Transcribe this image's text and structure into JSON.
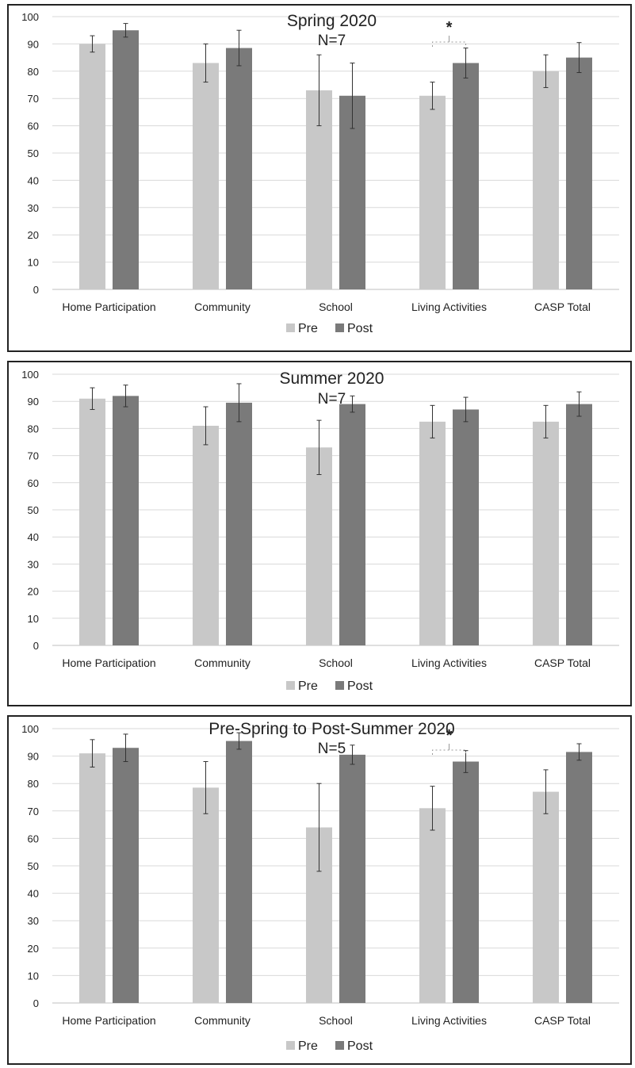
{
  "chart_data": [
    {
      "type": "bar",
      "title": "Spring 2020",
      "subtitle": "N=7",
      "categories": [
        "Home Participation",
        "Community",
        "School",
        "Living Activities",
        "CASP Total"
      ],
      "series": [
        {
          "name": "Pre",
          "values": [
            90,
            83,
            73,
            71,
            80
          ],
          "error": [
            3,
            7,
            13,
            5,
            6
          ]
        },
        {
          "name": "Post",
          "values": [
            95,
            88.5,
            71,
            83,
            85
          ],
          "error": [
            2.5,
            6.5,
            12,
            5.5,
            5.5
          ]
        }
      ],
      "ylim": [
        0,
        100
      ],
      "yticks": [
        0,
        10,
        20,
        30,
        40,
        50,
        60,
        70,
        80,
        90,
        100
      ],
      "grid": true,
      "legend": "bottom-center",
      "significance": [
        {
          "category": "Living Activities",
          "label": "*"
        }
      ]
    },
    {
      "type": "bar",
      "title": "Summer 2020",
      "subtitle": "N=7",
      "categories": [
        "Home Participation",
        "Community",
        "School",
        "Living Activities",
        "CASP Total"
      ],
      "series": [
        {
          "name": "Pre",
          "values": [
            91,
            81,
            73,
            82.5,
            82.5
          ],
          "error": [
            4,
            7,
            10,
            6,
            6
          ]
        },
        {
          "name": "Post",
          "values": [
            92,
            89.5,
            89,
            87,
            89
          ],
          "error": [
            4,
            7,
            3,
            4.5,
            4.5
          ]
        }
      ],
      "ylim": [
        0,
        100
      ],
      "yticks": [
        0,
        10,
        20,
        30,
        40,
        50,
        60,
        70,
        80,
        90,
        100
      ],
      "grid": true,
      "legend": "bottom-center",
      "significance": []
    },
    {
      "type": "bar",
      "title": "Pre-Spring to Post-Summer 2020",
      "subtitle": "N=5",
      "categories": [
        "Home Participation",
        "Community",
        "School",
        "Living Activities",
        "CASP Total"
      ],
      "series": [
        {
          "name": "Pre",
          "values": [
            91,
            78.5,
            64,
            71,
            77
          ],
          "error": [
            5,
            9.5,
            16,
            8,
            8
          ]
        },
        {
          "name": "Post",
          "values": [
            93,
            95.5,
            90.5,
            88,
            91.5
          ],
          "error": [
            5,
            3,
            3.5,
            4,
            3
          ]
        }
      ],
      "ylim": [
        0,
        100
      ],
      "yticks": [
        0,
        10,
        20,
        30,
        40,
        50,
        60,
        70,
        80,
        90,
        100
      ],
      "grid": true,
      "legend": "bottom-center",
      "significance": [
        {
          "category": "Living Activities",
          "label": "*"
        }
      ]
    }
  ],
  "colors": {
    "pre": "#c8c8c8",
    "post": "#7a7a7a",
    "grid": "#d9d9d9",
    "axis": "#bfbfbf",
    "text": "#222222"
  }
}
